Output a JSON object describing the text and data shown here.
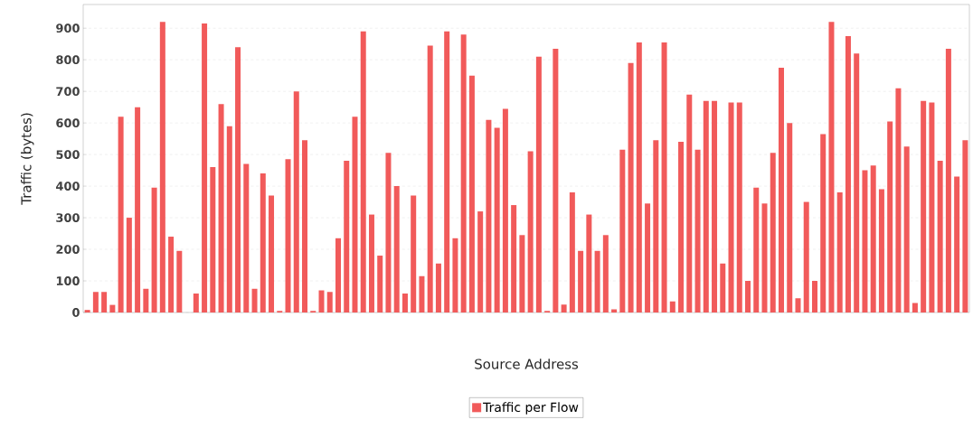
{
  "chart_data": {
    "type": "bar",
    "xlabel": "Source Address",
    "ylabel": "Traffic (bytes)",
    "categories": [
      null,
      null,
      null,
      null,
      null,
      null,
      null,
      null,
      null,
      null,
      null,
      null,
      null,
      null,
      null,
      null,
      null,
      null,
      null,
      null,
      null,
      null,
      null,
      null,
      null,
      null,
      null,
      null,
      null,
      null,
      null,
      null,
      null,
      null,
      null,
      null,
      null,
      null,
      null,
      null,
      null,
      null,
      null,
      null,
      null,
      null,
      null,
      null,
      null,
      null,
      null,
      null,
      null,
      null,
      null,
      null,
      null,
      null,
      null,
      null,
      null,
      null,
      null,
      null,
      null,
      null,
      null,
      null,
      null,
      null,
      null,
      null,
      null,
      null,
      null,
      null,
      null,
      null,
      null,
      null,
      null,
      null,
      null,
      null,
      null,
      null,
      null,
      null,
      null,
      null,
      null,
      null,
      null,
      null,
      null,
      null,
      null,
      null,
      null,
      null,
      null,
      null,
      null,
      null,
      null,
      null
    ],
    "series": [
      {
        "name": "Traffic per Flow",
        "color": "#f15a5a",
        "values": [
          8,
          65,
          65,
          24,
          620,
          300,
          650,
          75,
          395,
          920,
          240,
          195,
          0,
          60,
          915,
          460,
          660,
          590,
          840,
          470,
          75,
          440,
          370,
          5,
          485,
          700,
          545,
          5,
          70,
          65,
          235,
          480,
          620,
          890,
          310,
          180,
          505,
          400,
          60,
          370,
          115,
          845,
          155,
          890,
          235,
          880,
          750,
          320,
          610,
          585,
          645,
          340,
          245,
          510,
          810,
          5,
          835,
          25,
          380,
          195,
          310,
          195,
          245,
          10,
          515,
          790,
          855,
          345,
          545,
          855,
          35,
          540,
          690,
          515,
          670,
          670,
          155,
          665,
          665,
          100,
          395,
          345,
          505,
          775,
          600,
          45,
          350,
          100,
          565,
          920,
          380,
          875,
          820,
          450,
          465,
          390,
          605,
          710,
          525,
          30,
          670,
          665,
          480,
          835,
          430,
          545
        ]
      }
    ],
    "ylim": [
      0,
      975
    ],
    "yticks": [
      0,
      100,
      200,
      300,
      400,
      500,
      600,
      700,
      800,
      900
    ],
    "grid": "y",
    "legend": "bottom"
  }
}
